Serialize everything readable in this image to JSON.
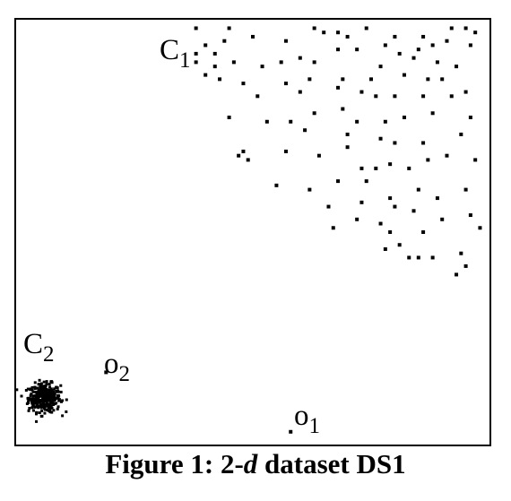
{
  "figure": {
    "caption_prefix": "Figure 1: 2-",
    "caption_italic": "d",
    "caption_suffix": " dataset DS1"
  },
  "chart_data": {
    "type": "scatter",
    "title": "",
    "xlabel": "",
    "ylabel": "",
    "grid": false,
    "legend": "none",
    "xlim": [
      0,
      100
    ],
    "ylim": [
      0,
      100
    ],
    "marker_color": "#000000",
    "annotations": [
      {
        "text": "C",
        "sub": "1",
        "target": "cluster C1"
      },
      {
        "text": "C",
        "sub": "2",
        "target": "cluster C2"
      },
      {
        "text": "o",
        "sub": "2",
        "target": "outlier o2"
      },
      {
        "text": "o",
        "sub": "1",
        "target": "outlier o1"
      }
    ],
    "series": [
      {
        "name": "C1",
        "points": [
          [
            38,
            98
          ],
          [
            45,
            98
          ],
          [
            50,
            96
          ],
          [
            57,
            95
          ],
          [
            63,
            98
          ],
          [
            65,
            97
          ],
          [
            68,
            97
          ],
          [
            70,
            96
          ],
          [
            74,
            98
          ],
          [
            80,
            96
          ],
          [
            86,
            96
          ],
          [
            92,
            98
          ],
          [
            95,
            98
          ],
          [
            97,
            97
          ],
          [
            40,
            94
          ],
          [
            44,
            95
          ],
          [
            38,
            92
          ],
          [
            42,
            92
          ],
          [
            68,
            93
          ],
          [
            72,
            93
          ],
          [
            78,
            94
          ],
          [
            81,
            92
          ],
          [
            85,
            93
          ],
          [
            88,
            94
          ],
          [
            91,
            95
          ],
          [
            96,
            94
          ],
          [
            38,
            90
          ],
          [
            42,
            89
          ],
          [
            46,
            90
          ],
          [
            52,
            89
          ],
          [
            56,
            90
          ],
          [
            60,
            91
          ],
          [
            63,
            90
          ],
          [
            77,
            89
          ],
          [
            84,
            91
          ],
          [
            89,
            90
          ],
          [
            93,
            89
          ],
          [
            40,
            87
          ],
          [
            43,
            86
          ],
          [
            48,
            85
          ],
          [
            57,
            85
          ],
          [
            62,
            86
          ],
          [
            69,
            86
          ],
          [
            75,
            86
          ],
          [
            82,
            87
          ],
          [
            87,
            86
          ],
          [
            90,
            86
          ],
          [
            51,
            82
          ],
          [
            60,
            83
          ],
          [
            68,
            84
          ],
          [
            73,
            83
          ],
          [
            76,
            82
          ],
          [
            80,
            82
          ],
          [
            86,
            82
          ],
          [
            92,
            82
          ],
          [
            95,
            83
          ],
          [
            45,
            77
          ],
          [
            53,
            76
          ],
          [
            58,
            76
          ],
          [
            63,
            78
          ],
          [
            69,
            79
          ],
          [
            72,
            76
          ],
          [
            78,
            76
          ],
          [
            82,
            77
          ],
          [
            88,
            78
          ],
          [
            96,
            77
          ],
          [
            61,
            74
          ],
          [
            70,
            73
          ],
          [
            77,
            72
          ],
          [
            80,
            71
          ],
          [
            86,
            71
          ],
          [
            94,
            73
          ],
          [
            47,
            68
          ],
          [
            48,
            69
          ],
          [
            49,
            67
          ],
          [
            57,
            69
          ],
          [
            64,
            68
          ],
          [
            70,
            70
          ],
          [
            73,
            65
          ],
          [
            76,
            65
          ],
          [
            79,
            66
          ],
          [
            83,
            65
          ],
          [
            87,
            67
          ],
          [
            91,
            68
          ],
          [
            97,
            67
          ],
          [
            55,
            61
          ],
          [
            62,
            60
          ],
          [
            68,
            62
          ],
          [
            74,
            62
          ],
          [
            79,
            58
          ],
          [
            85,
            60
          ],
          [
            89,
            58
          ],
          [
            95,
            60
          ],
          [
            66,
            56
          ],
          [
            73,
            57
          ],
          [
            80,
            56
          ],
          [
            84,
            55
          ],
          [
            90,
            53
          ],
          [
            96,
            54
          ],
          [
            67,
            51
          ],
          [
            72,
            53
          ],
          [
            77,
            52
          ],
          [
            79,
            50
          ],
          [
            86,
            50
          ],
          [
            98,
            51
          ],
          [
            78,
            46
          ],
          [
            81,
            47
          ],
          [
            83,
            44
          ],
          [
            85,
            44
          ],
          [
            88,
            44
          ],
          [
            94,
            45
          ],
          [
            95,
            42
          ],
          [
            93,
            40
          ]
        ]
      },
      {
        "name": "C2",
        "center": [
          6,
          11
        ],
        "spread": [
          2.4,
          3.0
        ],
        "count": 360
      },
      {
        "name": "o2",
        "points": [
          [
            19,
            17
          ]
        ]
      },
      {
        "name": "o1",
        "points": [
          [
            58,
            3
          ]
        ]
      }
    ]
  }
}
